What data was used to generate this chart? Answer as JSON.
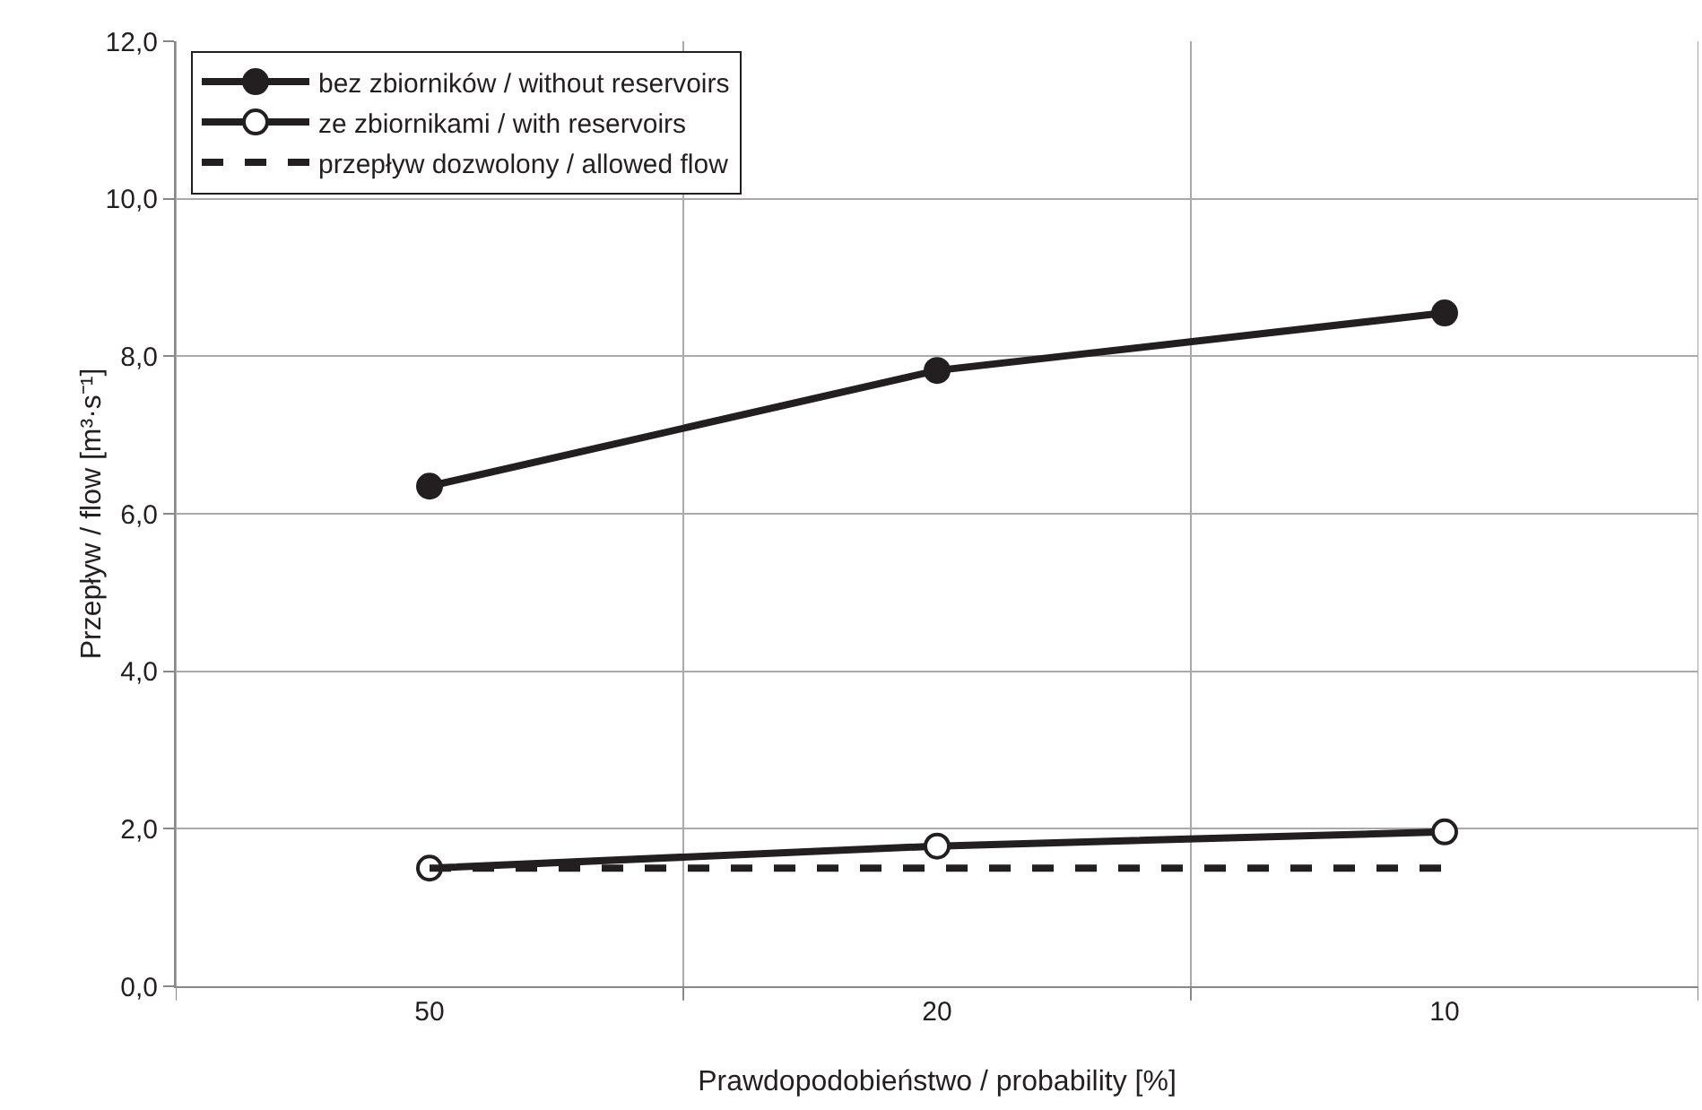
{
  "chart_data": {
    "type": "line",
    "xlabel": "Prawdopodobieństwo / probability [%]",
    "ylabel": "Przepływ / flow [m³·s⁻¹]",
    "categories": [
      "50",
      "20",
      "10"
    ],
    "series": [
      {
        "name": "bez zbiorników / without reservoirs",
        "color": "#231f20",
        "values": [
          6.35,
          7.82,
          8.55
        ],
        "marker": "circle",
        "line_style": "solid"
      },
      {
        "name": "ze zbiornikami / with reservoirs",
        "color": "#231f20",
        "values": [
          1.5,
          1.78,
          1.96
        ],
        "marker": "circle",
        "line_style": "solid"
      },
      {
        "name": "przepływ dozwolony / allowed flow",
        "color": "#231f20",
        "values": [
          1.5,
          1.5,
          1.5
        ],
        "marker": "none",
        "line_style": "dashed"
      }
    ],
    "ylim": [
      0,
      12
    ],
    "yticks": [
      {
        "value": 0,
        "label": "0,0"
      },
      {
        "value": 2,
        "label": "2,0"
      },
      {
        "value": 4,
        "label": "4,0"
      },
      {
        "value": 6,
        "label": "6,0"
      },
      {
        "value": 8,
        "label": "8,0"
      },
      {
        "value": 10,
        "label": "10,0"
      },
      {
        "value": 12,
        "label": "12,0"
      }
    ],
    "grid": true,
    "legend": "top left"
  }
}
